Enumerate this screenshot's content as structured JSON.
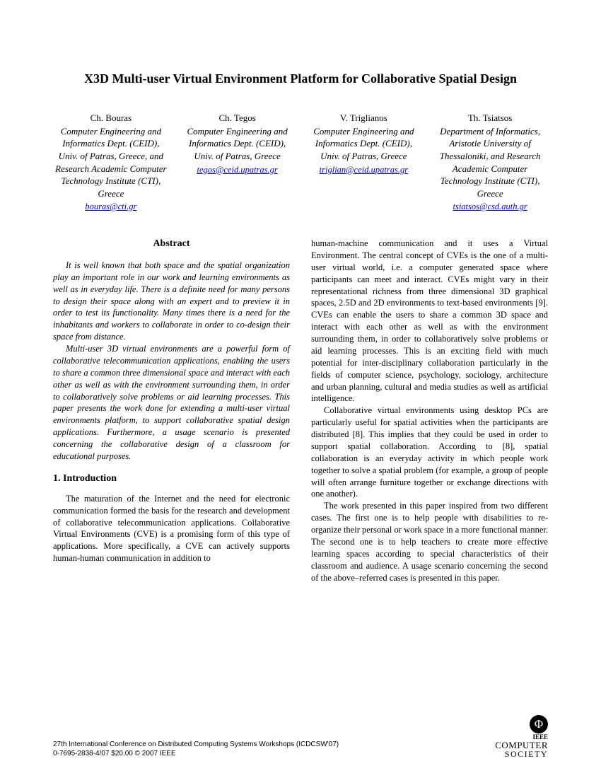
{
  "title": "X3D Multi-user Virtual Environment Platform for Collaborative Spatial Design",
  "authors": [
    {
      "name": "Ch. Bouras",
      "affiliation": "Computer Engineering and Informatics Dept. (CEID), Univ. of Patras, Greece, and Research Academic Computer Technology Institute (CTI), Greece",
      "email": "bouras@cti.gr"
    },
    {
      "name": "Ch. Tegos",
      "affiliation": "Computer Engineering and Informatics Dept. (CEID), Univ. of Patras, Greece",
      "email": "tegos@ceid.upatras.gr"
    },
    {
      "name": "V. Triglianos",
      "affiliation": "Computer Engineering and Informatics Dept. (CEID), Univ. of Patras, Greece",
      "email": "triglian@ceid.upatras.gr"
    },
    {
      "name": "Th. Tsiatsos",
      "affiliation": "Department of Informatics, Aristotle University of Thessaloniki, and Research Academic Computer Technology Institute (CTI), Greece",
      "email": "tsiatsos@csd.auth.gr"
    }
  ],
  "abstract_heading": "Abstract",
  "abstract_p1": "It is well known that both space and the spatial organization play an important role in our work and learning environments as well as in everyday life. There is a definite need for many persons to design their space along with an expert and to preview it in order to test its functionality. Many times there is a need for the inhabitants and workers to collaborate in order to co-design their space from distance.",
  "abstract_p2": "Multi-user 3D virtual environments are a powerful form of collaborative telecommunication applications, enabling the users to share a common three dimensional space and interact with each other as well as with the environment surrounding them, in order to collaboratively solve problems or aid learning processes. This paper presents the work done for extending a multi-user virtual environments platform, to support collaborative spatial design applications. Furthermore, a usage scenario is presented concerning the collaborative design of a classroom for educational purposes.",
  "section1_heading": "1. Introduction",
  "intro_p1": "The maturation of the Internet and the need for electronic communication formed the basis for the research and development of collaborative telecommunication applications. Collaborative Virtual Environments (CVE) is a promising form of this type of applications. More specifically, a CVE can actively supports human-human communication in addition to ",
  "col2_p1": "human-machine communication and it uses a Virtual Environment. The central concept of CVEs is the one of a multi-user virtual world, i.e. a computer generated space where participants can meet and interact. CVEs might vary in their representational richness from three dimensional 3D graphical spaces, 2.5D and 2D environments to text-based environments [9]. CVEs can enable the users to share a common 3D space and interact with each other as well as with the environment surrounding them, in order to collaboratively solve problems or aid learning processes. This is an exciting field with much potential for inter-disciplinary collaboration particularly in the fields of computer science, psychology, sociology, architecture and urban planning, cultural and media studies as well as artificial intelligence.",
  "col2_p2": "Collaborative virtual environments using desktop PCs are particularly useful for spatial activities when the participants are distributed [8]. This implies that they could be used in order to support spatial collaboration. According to [8], spatial collaboration is an everyday activity in which people work together to solve a spatial problem (for example, a group of people will often arrange furniture together or exchange directions with one another).",
  "col2_p3": "The work presented in this paper inspired from two different cases. The first one is to help people with disabilities to re-organize their personal or work space in a more functional manner. The second one is to help teachers to create more effective learning spaces according to special characteristics of their classroom and audience. A usage scenario concerning the second of the above–referred cases is presented in this paper.",
  "footer_line1": "27th International Conference on Distributed Computing Systems Workshops (ICDCSW'07)",
  "footer_line2": "0-7695-2838-4/07 $20.00 © 2007 IEEE",
  "logo": {
    "ieee": "IEEE",
    "computer": "COMPUTER",
    "society": "SOCIETY"
  }
}
